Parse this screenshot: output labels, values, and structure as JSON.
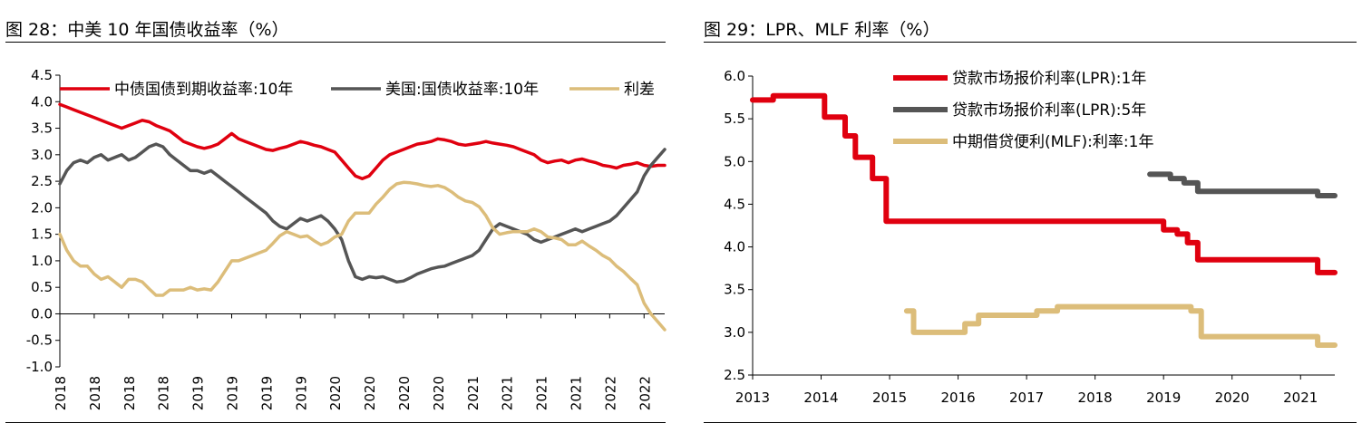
{
  "figures": [
    {
      "title": "图 28：中美 10 年国债收益率（%）",
      "chart_data": {
        "type": "line",
        "ylim": [
          -1.0,
          4.5
        ],
        "yticks": [
          "4.5",
          "4.0",
          "3.5",
          "3.0",
          "2.5",
          "2.0",
          "1.5",
          "1.0",
          "0.5",
          "0.0",
          "-0.5",
          "-1.0"
        ],
        "xlim": [
          2018.0,
          2022.4
        ],
        "xticks": [
          {
            "x": 2018.0,
            "label": "2018"
          },
          {
            "x": 2018.25,
            "label": "2018"
          },
          {
            "x": 2018.5,
            "label": "2018"
          },
          {
            "x": 2018.75,
            "label": "2018"
          },
          {
            "x": 2019.0,
            "label": "2019"
          },
          {
            "x": 2019.25,
            "label": "2019"
          },
          {
            "x": 2019.5,
            "label": "2019"
          },
          {
            "x": 2019.75,
            "label": "2019"
          },
          {
            "x": 2020.0,
            "label": "2020"
          },
          {
            "x": 2020.25,
            "label": "2020"
          },
          {
            "x": 2020.5,
            "label": "2020"
          },
          {
            "x": 2020.75,
            "label": "2020"
          },
          {
            "x": 2021.0,
            "label": "2021"
          },
          {
            "x": 2021.25,
            "label": "2021"
          },
          {
            "x": 2021.5,
            "label": "2021"
          },
          {
            "x": 2021.75,
            "label": "2021"
          },
          {
            "x": 2022.0,
            "label": "2022"
          },
          {
            "x": 2022.25,
            "label": "2022"
          }
        ],
        "legend_position": "top",
        "series": [
          {
            "name": "中债国债到期收益率:10年",
            "color": "#e0000f",
            "step": false,
            "x": [
              2018.0,
              2018.05,
              2018.1,
              2018.15,
              2018.2,
              2018.25,
              2018.3,
              2018.35,
              2018.4,
              2018.45,
              2018.5,
              2018.55,
              2018.6,
              2018.65,
              2018.7,
              2018.75,
              2018.8,
              2018.85,
              2018.9,
              2018.95,
              2019.0,
              2019.05,
              2019.1,
              2019.15,
              2019.2,
              2019.25,
              2019.3,
              2019.35,
              2019.4,
              2019.45,
              2019.5,
              2019.55,
              2019.6,
              2019.65,
              2019.7,
              2019.75,
              2019.8,
              2019.85,
              2019.9,
              2019.95,
              2020.0,
              2020.05,
              2020.1,
              2020.15,
              2020.2,
              2020.25,
              2020.3,
              2020.35,
              2020.4,
              2020.45,
              2020.5,
              2020.55,
              2020.6,
              2020.65,
              2020.7,
              2020.75,
              2020.8,
              2020.85,
              2020.9,
              2020.95,
              2021.0,
              2021.05,
              2021.1,
              2021.15,
              2021.2,
              2021.25,
              2021.3,
              2021.35,
              2021.4,
              2021.45,
              2021.5,
              2021.55,
              2021.6,
              2021.65,
              2021.7,
              2021.75,
              2021.8,
              2021.85,
              2021.9,
              2021.95,
              2022.0,
              2022.05,
              2022.1,
              2022.15,
              2022.2,
              2022.25,
              2022.3,
              2022.35,
              2022.4
            ],
            "y": [
              3.95,
              3.9,
              3.85,
              3.8,
              3.75,
              3.7,
              3.65,
              3.6,
              3.55,
              3.5,
              3.55,
              3.6,
              3.65,
              3.62,
              3.55,
              3.5,
              3.45,
              3.35,
              3.25,
              3.2,
              3.15,
              3.12,
              3.15,
              3.2,
              3.3,
              3.4,
              3.3,
              3.25,
              3.2,
              3.15,
              3.1,
              3.08,
              3.12,
              3.15,
              3.2,
              3.25,
              3.22,
              3.18,
              3.15,
              3.1,
              3.05,
              2.9,
              2.75,
              2.6,
              2.55,
              2.6,
              2.75,
              2.9,
              3.0,
              3.05,
              3.1,
              3.15,
              3.2,
              3.22,
              3.25,
              3.3,
              3.28,
              3.25,
              3.2,
              3.18,
              3.2,
              3.22,
              3.25,
              3.22,
              3.2,
              3.18,
              3.15,
              3.1,
              3.05,
              3.0,
              2.9,
              2.85,
              2.88,
              2.9,
              2.85,
              2.9,
              2.92,
              2.88,
              2.85,
              2.8,
              2.78,
              2.75,
              2.8,
              2.82,
              2.85,
              2.8,
              2.78,
              2.8,
              2.8
            ]
          },
          {
            "name": "美国:国债收益率:10年",
            "color": "#555555",
            "step": false,
            "x": [
              2018.0,
              2018.05,
              2018.1,
              2018.15,
              2018.2,
              2018.25,
              2018.3,
              2018.35,
              2018.4,
              2018.45,
              2018.5,
              2018.55,
              2018.6,
              2018.65,
              2018.7,
              2018.75,
              2018.8,
              2018.85,
              2018.9,
              2018.95,
              2019.0,
              2019.05,
              2019.1,
              2019.15,
              2019.2,
              2019.25,
              2019.3,
              2019.35,
              2019.4,
              2019.45,
              2019.5,
              2019.55,
              2019.6,
              2019.65,
              2019.7,
              2019.75,
              2019.8,
              2019.85,
              2019.9,
              2019.95,
              2020.0,
              2020.05,
              2020.1,
              2020.15,
              2020.2,
              2020.25,
              2020.3,
              2020.35,
              2020.4,
              2020.45,
              2020.5,
              2020.55,
              2020.6,
              2020.65,
              2020.7,
              2020.75,
              2020.8,
              2020.85,
              2020.9,
              2020.95,
              2021.0,
              2021.05,
              2021.1,
              2021.15,
              2021.2,
              2021.25,
              2021.3,
              2021.35,
              2021.4,
              2021.45,
              2021.5,
              2021.55,
              2021.6,
              2021.65,
              2021.7,
              2021.75,
              2021.8,
              2021.85,
              2021.9,
              2021.95,
              2022.0,
              2022.05,
              2022.1,
              2022.15,
              2022.2,
              2022.25,
              2022.3,
              2022.35,
              2022.4
            ],
            "y": [
              2.45,
              2.7,
              2.85,
              2.9,
              2.85,
              2.95,
              3.0,
              2.9,
              2.95,
              3.0,
              2.9,
              2.95,
              3.05,
              3.15,
              3.2,
              3.15,
              3.0,
              2.9,
              2.8,
              2.7,
              2.7,
              2.65,
              2.7,
              2.6,
              2.5,
              2.4,
              2.3,
              2.2,
              2.1,
              2.0,
              1.9,
              1.75,
              1.65,
              1.6,
              1.7,
              1.8,
              1.75,
              1.8,
              1.85,
              1.75,
              1.6,
              1.4,
              1.0,
              0.7,
              0.65,
              0.7,
              0.68,
              0.7,
              0.65,
              0.6,
              0.62,
              0.68,
              0.75,
              0.8,
              0.85,
              0.88,
              0.9,
              0.95,
              1.0,
              1.05,
              1.1,
              1.2,
              1.4,
              1.6,
              1.7,
              1.65,
              1.6,
              1.55,
              1.5,
              1.4,
              1.35,
              1.4,
              1.45,
              1.5,
              1.55,
              1.6,
              1.55,
              1.6,
              1.65,
              1.7,
              1.75,
              1.85,
              2.0,
              2.15,
              2.3,
              2.6,
              2.8,
              2.95,
              3.1
            ]
          },
          {
            "name": "利差",
            "color": "#dcbd7a",
            "step": false,
            "x": [
              2018.0,
              2018.05,
              2018.1,
              2018.15,
              2018.2,
              2018.25,
              2018.3,
              2018.35,
              2018.4,
              2018.45,
              2018.5,
              2018.55,
              2018.6,
              2018.65,
              2018.7,
              2018.75,
              2018.8,
              2018.85,
              2018.9,
              2018.95,
              2019.0,
              2019.05,
              2019.1,
              2019.15,
              2019.2,
              2019.25,
              2019.3,
              2019.35,
              2019.4,
              2019.45,
              2019.5,
              2019.55,
              2019.6,
              2019.65,
              2019.7,
              2019.75,
              2019.8,
              2019.85,
              2019.9,
              2019.95,
              2020.0,
              2020.05,
              2020.1,
              2020.15,
              2020.2,
              2020.25,
              2020.3,
              2020.35,
              2020.4,
              2020.45,
              2020.5,
              2020.55,
              2020.6,
              2020.65,
              2020.7,
              2020.75,
              2020.8,
              2020.85,
              2020.9,
              2020.95,
              2021.0,
              2021.05,
              2021.1,
              2021.15,
              2021.2,
              2021.25,
              2021.3,
              2021.35,
              2021.4,
              2021.45,
              2021.5,
              2021.55,
              2021.6,
              2021.65,
              2021.7,
              2021.75,
              2021.8,
              2021.85,
              2021.9,
              2021.95,
              2022.0,
              2022.05,
              2022.1,
              2022.15,
              2022.2,
              2022.25,
              2022.3,
              2022.35,
              2022.4
            ],
            "y": [
              1.5,
              1.2,
              1.0,
              0.9,
              0.9,
              0.75,
              0.65,
              0.7,
              0.6,
              0.5,
              0.65,
              0.65,
              0.6,
              0.47,
              0.35,
              0.35,
              0.45,
              0.45,
              0.45,
              0.5,
              0.45,
              0.47,
              0.45,
              0.6,
              0.8,
              1.0,
              1.0,
              1.05,
              1.1,
              1.15,
              1.2,
              1.33,
              1.47,
              1.55,
              1.5,
              1.45,
              1.47,
              1.38,
              1.3,
              1.35,
              1.45,
              1.5,
              1.75,
              1.9,
              1.9,
              1.9,
              2.07,
              2.2,
              2.35,
              2.45,
              2.48,
              2.47,
              2.45,
              2.42,
              2.4,
              2.42,
              2.38,
              2.3,
              2.2,
              2.13,
              2.1,
              2.02,
              1.85,
              1.62,
              1.5,
              1.53,
              1.55,
              1.55,
              1.55,
              1.6,
              1.55,
              1.45,
              1.43,
              1.4,
              1.3,
              1.3,
              1.37,
              1.28,
              1.2,
              1.1,
              1.03,
              0.9,
              0.8,
              0.67,
              0.55,
              0.2,
              0.0,
              -0.15,
              -0.3
            ]
          }
        ]
      }
    },
    {
      "title": "图 29：LPR、MLF 利率（%）",
      "chart_data": {
        "type": "line",
        "ylim": [
          2.5,
          6.0
        ],
        "yticks": [
          "6.0",
          "5.5",
          "5.0",
          "4.5",
          "4.0",
          "3.5",
          "3.0",
          "2.5"
        ],
        "xlim": [
          2013.0,
          2021.5
        ],
        "xticks": [
          {
            "x": 2013,
            "label": "2013"
          },
          {
            "x": 2014,
            "label": "2014"
          },
          {
            "x": 2015,
            "label": "2015"
          },
          {
            "x": 2016,
            "label": "2016"
          },
          {
            "x": 2017,
            "label": "2017"
          },
          {
            "x": 2018,
            "label": "2018"
          },
          {
            "x": 2019,
            "label": "2019"
          },
          {
            "x": 2020,
            "label": "2020"
          },
          {
            "x": 2021,
            "label": "2021"
          }
        ],
        "legend_position": "top-right",
        "series": [
          {
            "name": "贷款市场报价利率(LPR):1年",
            "color": "#e0000f",
            "step": true,
            "x": [
              2013.0,
              2013.3,
              2014.05,
              2014.35,
              2014.5,
              2014.75,
              2014.95,
              2018.8,
              2019.0,
              2019.2,
              2019.35,
              2019.5,
              2020.0,
              2020.3,
              2021.1,
              2021.25,
              2021.5
            ],
            "y": [
              5.72,
              5.77,
              5.52,
              5.3,
              5.05,
              4.8,
              4.3,
              4.3,
              4.2,
              4.15,
              4.05,
              3.85,
              3.85,
              3.85,
              3.85,
              3.7,
              3.7
            ]
          },
          {
            "name": "贷款市场报价利率(LPR):5年",
            "color": "#555555",
            "step": true,
            "x": [
              2018.8,
              2019.1,
              2019.3,
              2019.5,
              2021.25,
              2021.5
            ],
            "y": [
              4.85,
              4.8,
              4.75,
              4.65,
              4.6,
              4.6
            ]
          },
          {
            "name": "中期借贷便利(MLF):利率:1年",
            "color": "#dcbd7a",
            "step": true,
            "x": [
              2015.25,
              2015.35,
              2015.5,
              2016.1,
              2016.3,
              2017.15,
              2017.45,
              2018.75,
              2019.4,
              2019.55,
              2021.1,
              2021.25,
              2021.5
            ],
            "y": [
              3.25,
              3.0,
              3.0,
              3.1,
              3.2,
              3.25,
              3.3,
              3.3,
              3.25,
              2.95,
              2.95,
              2.85,
              2.85
            ]
          }
        ]
      }
    }
  ]
}
